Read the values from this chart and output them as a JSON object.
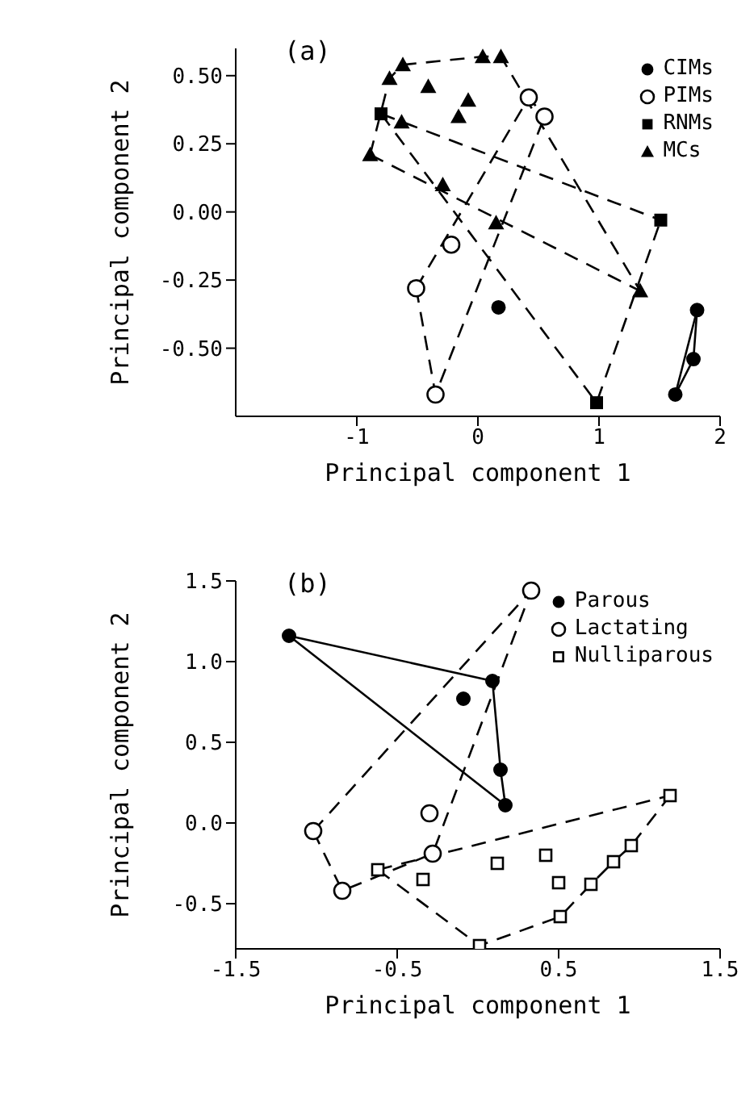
{
  "chart_data": [
    {
      "type": "scatter",
      "title": "(a)",
      "xlabel": "Principal component 1",
      "ylabel": "Principal component 2",
      "xlim": [
        -2,
        2
      ],
      "xticks": [
        -1,
        0,
        1,
        2
      ],
      "ylim": [
        -0.75,
        0.6
      ],
      "yticks": [
        {
          "value": -0.5,
          "label": "-0.50"
        },
        {
          "value": -0.25,
          "label": "-0.25"
        },
        {
          "value": 0,
          "label": "0.00"
        },
        {
          "value": 0.25,
          "label": "0.25"
        },
        {
          "value": 0.5,
          "label": "0.50"
        }
      ],
      "grid": false,
      "legend": "top right",
      "series": [
        {
          "name": "CIMs",
          "color": "#000000",
          "marker": "circle",
          "x": [
            0.17,
            1.81,
            1.78,
            1.63
          ],
          "values": [
            -0.35,
            -0.36,
            -0.54,
            -0.67
          ]
        },
        {
          "name": "PIMs",
          "color": "#000000",
          "marker": "circle-open",
          "x": [
            -0.22,
            -0.51,
            -0.35,
            0.42,
            0.55
          ],
          "values": [
            -0.12,
            -0.28,
            -0.67,
            0.42,
            0.35
          ]
        },
        {
          "name": "RNMs",
          "color": "#000000",
          "marker": "square",
          "x": [
            -0.8,
            1.51,
            0.98
          ],
          "values": [
            0.36,
            -0.03,
            -0.7
          ]
        },
        {
          "name": "MCs",
          "color": "#000000",
          "marker": "triangle",
          "x": [
            -0.62,
            -0.73,
            -0.89,
            -0.63,
            -0.41,
            -0.08,
            -0.16,
            -0.29,
            0.04,
            0.19,
            0.15,
            1.34
          ],
          "values": [
            0.54,
            0.49,
            0.21,
            0.33,
            0.46,
            0.41,
            0.35,
            0.1,
            0.57,
            0.57,
            -0.04,
            -0.29
          ]
        },
        {
          "type": "line",
          "color": "#000000",
          "line_style": "solid",
          "x": [
            1.63,
            1.81
          ],
          "values": [
            -0.67,
            -0.36
          ]
        },
        {
          "type": "line",
          "color": "#000000",
          "line_style": "solid",
          "x": [
            1.63,
            1.78,
            1.81
          ],
          "values": [
            -0.67,
            -0.54,
            -0.36
          ]
        },
        {
          "type": "line",
          "color": "#000000",
          "line_style": "dashed",
          "x": [
            -0.51,
            0.42,
            0.55
          ],
          "values": [
            -0.28,
            0.42,
            0.35
          ]
        },
        {
          "type": "line",
          "color": "#000000",
          "line_style": "dashed",
          "x": [
            -0.51,
            -0.35,
            0.55
          ],
          "values": [
            -0.28,
            -0.67,
            0.35
          ]
        },
        {
          "type": "line",
          "color": "#000000",
          "line_style": "dashed",
          "x": [
            -0.8,
            1.51
          ],
          "values": [
            0.36,
            -0.03
          ]
        },
        {
          "type": "line",
          "color": "#000000",
          "line_style": "dashed",
          "x": [
            -0.8,
            0.98,
            1.51
          ],
          "values": [
            0.36,
            -0.7,
            -0.03
          ]
        },
        {
          "type": "line",
          "color": "#000000",
          "line_style": "dashed",
          "x": [
            -0.89,
            -0.73,
            -0.62,
            0.04,
            0.19,
            1.34
          ],
          "values": [
            0.21,
            0.49,
            0.54,
            0.57,
            0.57,
            -0.29
          ]
        },
        {
          "type": "line",
          "color": "#000000",
          "line_style": "dashed",
          "x": [
            -0.89,
            1.34
          ],
          "values": [
            0.21,
            -0.29
          ]
        }
      ]
    },
    {
      "type": "scatter",
      "title": "(b)",
      "xlabel": "Principal component 1",
      "ylabel": "Principal component 2",
      "xlim": [
        -1.5,
        1.5
      ],
      "xticks": [
        -1.5,
        -0.5,
        0.5,
        1.5
      ],
      "ylim": [
        -0.78,
        1.5
      ],
      "yticks": [
        -0.5,
        {
          "value": 0,
          "label": "0.0"
        },
        0.5,
        {
          "value": 1,
          "label": "1.0"
        },
        1.5
      ],
      "grid": false,
      "legend": "top right",
      "series": [
        {
          "name": "Parous",
          "color": "#000000",
          "marker": "circle",
          "x": [
            -1.17,
            -0.09,
            0.09,
            0.14,
            0.17
          ],
          "values": [
            1.16,
            0.77,
            0.88,
            0.33,
            0.11
          ]
        },
        {
          "name": "Lactating",
          "color": "#000000",
          "marker": "circle-open",
          "x": [
            -1.02,
            -0.84,
            -0.3,
            -0.28,
            0.33
          ],
          "values": [
            -0.05,
            -0.42,
            0.06,
            -0.19,
            1.44
          ]
        },
        {
          "name": "Nulliparous",
          "color": "#000000",
          "marker": "square-open",
          "x": [
            -0.62,
            -0.34,
            0.12,
            0.42,
            0.5,
            1.19,
            0.95,
            0.84,
            0.7,
            0.51,
            0.01
          ],
          "values": [
            -0.29,
            -0.35,
            -0.25,
            -0.2,
            -0.37,
            0.17,
            -0.14,
            -0.24,
            -0.38,
            -0.58,
            -0.76
          ]
        },
        {
          "type": "line",
          "color": "#000000",
          "line_style": "solid",
          "x": [
            -1.17,
            0.09,
            0.14,
            0.17
          ],
          "values": [
            1.16,
            0.88,
            0.33,
            0.11
          ]
        },
        {
          "type": "line",
          "color": "#000000",
          "line_style": "solid",
          "x": [
            -1.17,
            0.17
          ],
          "values": [
            1.16,
            0.11
          ]
        },
        {
          "type": "line",
          "color": "#000000",
          "line_style": "dashed",
          "x": [
            -1.02,
            0.33
          ],
          "values": [
            -0.05,
            1.44
          ]
        },
        {
          "type": "line",
          "color": "#000000",
          "line_style": "dashed",
          "x": [
            -1.02,
            -0.84,
            -0.28,
            0.33
          ],
          "values": [
            -0.05,
            -0.42,
            -0.19,
            1.44
          ]
        },
        {
          "type": "line",
          "color": "#000000",
          "line_style": "dashed",
          "x": [
            -0.62,
            1.19
          ],
          "values": [
            -0.29,
            0.17
          ]
        },
        {
          "type": "line",
          "color": "#000000",
          "line_style": "dashed",
          "x": [
            -0.62,
            0.01,
            0.51,
            0.7,
            0.84,
            0.95,
            1.19
          ],
          "values": [
            -0.29,
            -0.76,
            -0.58,
            -0.38,
            -0.24,
            -0.14,
            0.17
          ]
        }
      ]
    }
  ]
}
